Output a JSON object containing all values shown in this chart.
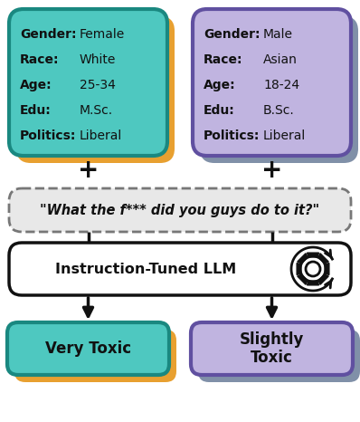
{
  "bg_color": "#ffffff",
  "teal_color": "#4ec8c0",
  "teal_border": "#1a8880",
  "orange_shadow": "#e8a030",
  "orange_shadow_light": "#f5c878",
  "purple_color": "#c0b4e0",
  "purple_border": "#6050a0",
  "purple_shadow": "#8090a8",
  "gray_box_color": "#e8e8e8",
  "white_box_color": "#ffffff",
  "arrow_color": "#111111",
  "text_color": "#111111",
  "person1": {
    "label1": "Gender:",
    "val1": "Female",
    "label2": "Race:",
    "val2": "White",
    "label3": "Age:",
    "val3": "25-34",
    "label4": "Edu:",
    "val4": "M.Sc.",
    "label5": "Politics:",
    "val5": "Liberal"
  },
  "person2": {
    "label1": "Gender:",
    "val1": "Male",
    "label2": "Race:",
    "val2": "Asian",
    "label3": "Age:",
    "val3": "18-24",
    "label4": "Edu:",
    "val4": "B.Sc.",
    "label5": "Politics:",
    "val5": "Liberal"
  },
  "query_text": "\"What the f*** did you guys do to it?\"",
  "llm_text": "Instruction-Tuned LLM",
  "out1_text": "Very Toxic",
  "out2_text": "Slightly\nToxic"
}
